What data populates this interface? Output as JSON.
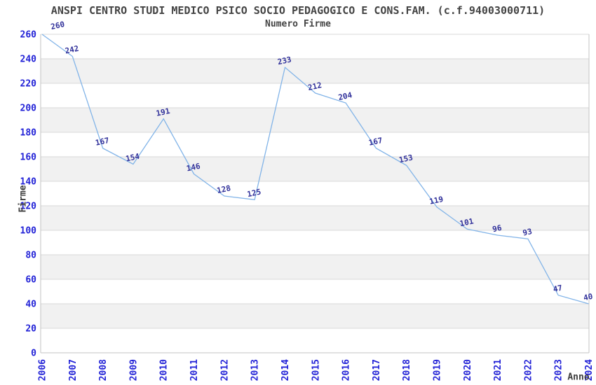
{
  "header": {
    "title": "ANSPI CENTRO STUDI MEDICO PSICO SOCIO PEDAGOGICO E CONS.FAM. (c.f.94003000711)",
    "subtitle": "Numero Firme"
  },
  "axes": {
    "y_title": "Firme",
    "x_title": "Anno"
  },
  "chart_data": {
    "type": "line",
    "title": "ANSPI CENTRO STUDI MEDICO PSICO SOCIO PEDAGOGICO E CONS.FAM. (c.f.94003000711)",
    "subtitle": "Numero Firme",
    "xlabel": "Anno",
    "ylabel": "Firme",
    "categories": [
      "2006",
      "2007",
      "2008",
      "2009",
      "2010",
      "2011",
      "2012",
      "2013",
      "2014",
      "2015",
      "2016",
      "2017",
      "2018",
      "2019",
      "2020",
      "2021",
      "2022",
      "2023",
      "2024"
    ],
    "values": [
      260,
      242,
      167,
      154,
      191,
      146,
      128,
      125,
      233,
      212,
      204,
      167,
      153,
      119,
      101,
      96,
      93,
      47,
      40
    ],
    "ylim": [
      0,
      260
    ],
    "ytick_step": 20,
    "grid": true,
    "legend": "none",
    "markers": "none",
    "data_label_rotation_deg": -12,
    "colors": {
      "line": "#82b4e8",
      "band": "#f1f1f1",
      "grid": "#d9d9d9",
      "frame": "#c3c3c3",
      "tick_label": "#2323d7",
      "data_label": "#32329b",
      "title_text": "#444444"
    }
  }
}
